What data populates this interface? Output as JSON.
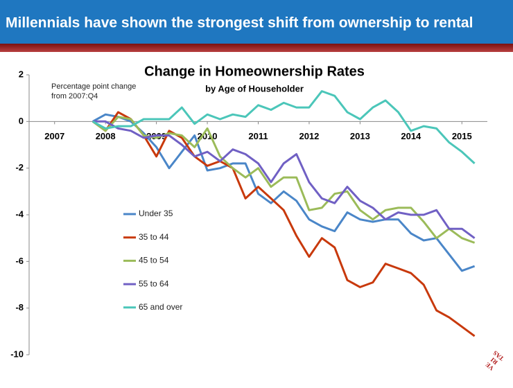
{
  "header": {
    "title": "Millennials have shown the strongest shift from ownership to rental"
  },
  "chart_data": {
    "type": "line",
    "title": "Change in Homeownership Rates",
    "subtitle": "by Age of Householder",
    "annotation": [
      "Percentage point change",
      "from 2007:Q4"
    ],
    "x": [
      2007.75,
      2008,
      2008.25,
      2008.5,
      2008.75,
      2009,
      2009.25,
      2009.5,
      2009.75,
      2010,
      2010.25,
      2010.5,
      2010.75,
      2011,
      2011.25,
      2011.5,
      2011.75,
      2012,
      2012.25,
      2012.5,
      2012.75,
      2013,
      2013.25,
      2013.5,
      2013.75,
      2014,
      2014.25,
      2014.5,
      2014.75,
      2015,
      2015.25
    ],
    "series": [
      {
        "name": "Under 35",
        "color": "#4a86c8",
        "values": [
          0,
          0.3,
          0.2,
          0,
          -0.5,
          -1.1,
          -2.0,
          -1.3,
          -0.6,
          -2.1,
          -2.0,
          -1.8,
          -1.8,
          -3.1,
          -3.5,
          -3.0,
          -3.4,
          -4.2,
          -4.5,
          -4.7,
          -3.9,
          -4.2,
          -4.3,
          -4.2,
          -4.2,
          -4.8,
          -5.1,
          -5.0,
          -5.7,
          -6.4,
          -6.2
        ]
      },
      {
        "name": "35 to 44",
        "color": "#c8390c",
        "values": [
          0,
          -0.4,
          0.4,
          0.1,
          -0.6,
          -1.5,
          -0.4,
          -0.7,
          -1.5,
          -1.9,
          -1.7,
          -2.0,
          -3.3,
          -2.8,
          -3.3,
          -3.8,
          -4.9,
          -5.8,
          -5.0,
          -5.4,
          -6.8,
          -7.1,
          -6.9,
          -6.1,
          -6.3,
          -6.5,
          -7.0,
          -8.1,
          -8.4,
          -8.8,
          -9.2
        ]
      },
      {
        "name": "45 to 54",
        "color": "#9bbb59",
        "values": [
          0,
          -0.4,
          0.2,
          0.1,
          -0.6,
          -0.7,
          -0.5,
          -0.6,
          -1.1,
          -0.3,
          -1.5,
          -2.0,
          -2.4,
          -2.0,
          -2.8,
          -2.4,
          -2.4,
          -3.8,
          -3.7,
          -3.1,
          -3.0,
          -3.8,
          -4.2,
          -3.8,
          -3.7,
          -3.7,
          -4.3,
          -5.0,
          -4.6,
          -5.0,
          -5.2
        ]
      },
      {
        "name": "55 to 64",
        "color": "#7060c4",
        "values": [
          0,
          0,
          -0.3,
          -0.4,
          -0.7,
          -0.6,
          -0.6,
          -1.0,
          -1.5,
          -1.3,
          -1.7,
          -1.2,
          -1.4,
          -1.8,
          -2.6,
          -1.8,
          -1.4,
          -2.6,
          -3.3,
          -3.5,
          -2.8,
          -3.4,
          -3.7,
          -4.2,
          -3.9,
          -4.0,
          -4.0,
          -3.8,
          -4.6,
          -4.6,
          -5.0
        ]
      },
      {
        "name": "65 and over",
        "color": "#4bc6b9",
        "values": [
          0,
          -0.3,
          -0.2,
          -0.2,
          0.1,
          0.1,
          0.1,
          0.6,
          -0.1,
          0.3,
          0.1,
          0.3,
          0.2,
          0.7,
          0.5,
          0.8,
          0.6,
          0.6,
          1.3,
          1.1,
          0.4,
          0.1,
          0.6,
          0.9,
          0.4,
          -0.4,
          -0.2,
          -0.3,
          -0.9,
          -1.3,
          -1.8
        ]
      }
    ],
    "xlim": [
      2006.5,
      2015.5
    ],
    "xticks": [
      2007,
      2008,
      2009,
      2010,
      2011,
      2012,
      2013,
      2014,
      2015
    ],
    "ylim": [
      -10,
      2
    ],
    "yticks": [
      2,
      0,
      -2,
      -4,
      -6,
      -8,
      -10
    ],
    "legend": "center-left"
  },
  "logo": [
    "VE",
    "RI",
    "TAS"
  ]
}
